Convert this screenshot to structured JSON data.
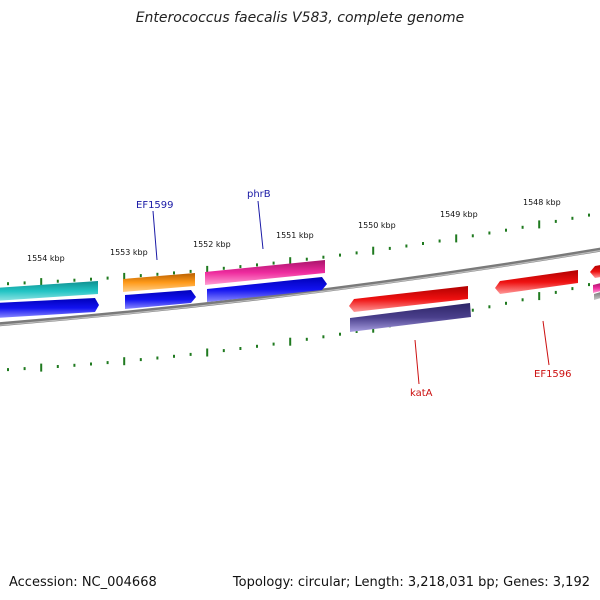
{
  "title": "Enterococcus faecalis V583, complete genome",
  "footer": {
    "accession": "Accession: NC_004668",
    "summary": "Topology: circular; Length: 3,218,031 bp; Genes: 3,192"
  },
  "kbp_labels": [
    "1554 kbp",
    "1553 kbp",
    "1552 kbp",
    "1551 kbp",
    "1550 kbp",
    "1549 kbp",
    "1548 kbp"
  ],
  "gene_labels": [
    {
      "text": "EF1599",
      "color": "#1a1aa6"
    },
    {
      "text": "phrB",
      "color": "#1a1aa6"
    },
    {
      "text": "katA",
      "color": "#cc1111"
    },
    {
      "text": "EF1596",
      "color": "#cc1111"
    }
  ],
  "colors": {
    "backbone": "#808080",
    "ticks": "#1f7a1f",
    "teal": "#1fb2b2",
    "blue": "#1010ee",
    "orange": "#ff9a1a",
    "pink": "#ee2b9e",
    "red": "#ee1010",
    "purple": "#4a3f8c"
  }
}
